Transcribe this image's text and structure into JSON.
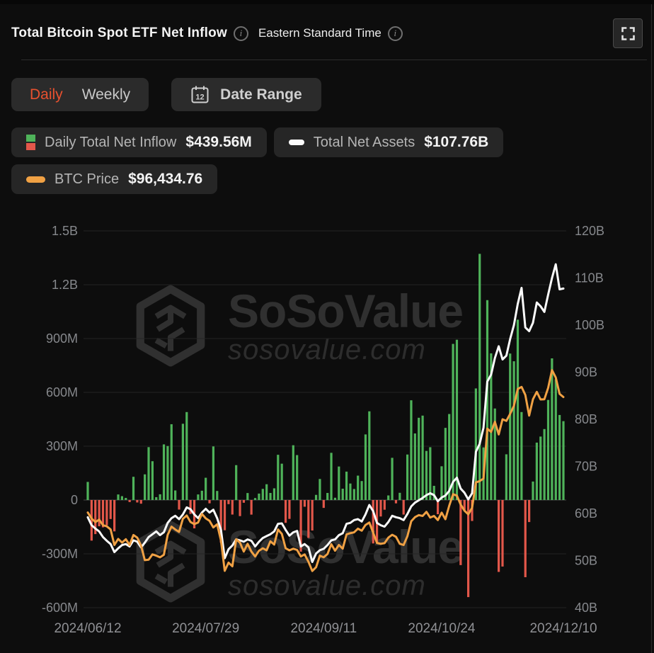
{
  "header": {
    "title": "Total Bitcoin Spot ETF Net Inflow",
    "timezone": "Eastern Standard Time",
    "info_icon_glyph": "i"
  },
  "controls": {
    "frequency_tabs": [
      {
        "label": "Daily",
        "active": true
      },
      {
        "label": "Weekly",
        "active": false
      }
    ],
    "date_range_label": "Date Range",
    "calendar_icon_day": "12"
  },
  "legend": [
    {
      "name": "Daily Total Net Inflow",
      "value": "$439.56M",
      "swatch": "green-red-bars"
    },
    {
      "name": "Total Net Assets",
      "value": "$107.76B",
      "swatch": "white-dash"
    },
    {
      "name": "BTC Price",
      "value": "$96,434.76",
      "swatch": "orange-dash"
    }
  ],
  "watermark": {
    "brand": "SoSoValue",
    "domain": "sosovalue.com"
  },
  "colors": {
    "background": "#0d0d0d",
    "pill": "#2b2b2b",
    "accent_active_tab": "#e8512f",
    "bar_positive": "#4fb35a",
    "bar_negative": "#e2574a",
    "net_assets_line": "#fbfbfb",
    "btc_price_line": "#f0a144",
    "grid": "#232323",
    "zero_line": "#474747",
    "axis_text": "#86888c",
    "x_axis_text": "#8f9094"
  },
  "chart_data": {
    "type": "combo-bar-line",
    "x_dates": [
      "2024/06/12",
      "2024/06/13",
      "2024/06/14",
      "2024/06/17",
      "2024/06/18",
      "2024/06/20",
      "2024/06/21",
      "2024/06/24",
      "2024/06/25",
      "2024/06/26",
      "2024/06/27",
      "2024/06/28",
      "2024/07/01",
      "2024/07/02",
      "2024/07/03",
      "2024/07/05",
      "2024/07/08",
      "2024/07/09",
      "2024/07/10",
      "2024/07/11",
      "2024/07/12",
      "2024/07/15",
      "2024/07/16",
      "2024/07/17",
      "2024/07/18",
      "2024/07/19",
      "2024/07/22",
      "2024/07/23",
      "2024/07/24",
      "2024/07/25",
      "2024/07/26",
      "2024/07/29",
      "2024/07/30",
      "2024/07/31",
      "2024/08/01",
      "2024/08/02",
      "2024/08/05",
      "2024/08/06",
      "2024/08/07",
      "2024/08/08",
      "2024/08/09",
      "2024/08/12",
      "2024/08/13",
      "2024/08/14",
      "2024/08/15",
      "2024/08/16",
      "2024/08/19",
      "2024/08/20",
      "2024/08/21",
      "2024/08/22",
      "2024/08/23",
      "2024/08/26",
      "2024/08/27",
      "2024/08/28",
      "2024/08/29",
      "2024/08/30",
      "2024/09/03",
      "2024/09/04",
      "2024/09/05",
      "2024/09/06",
      "2024/09/09",
      "2024/09/10",
      "2024/09/11",
      "2024/09/12",
      "2024/09/13",
      "2024/09/16",
      "2024/09/17",
      "2024/09/18",
      "2024/09/19",
      "2024/09/20",
      "2024/09/23",
      "2024/09/24",
      "2024/09/25",
      "2024/09/26",
      "2024/09/27",
      "2024/09/30",
      "2024/10/01",
      "2024/10/02",
      "2024/10/03",
      "2024/10/04",
      "2024/10/07",
      "2024/10/08",
      "2024/10/09",
      "2024/10/10",
      "2024/10/11",
      "2024/10/14",
      "2024/10/15",
      "2024/10/16",
      "2024/10/17",
      "2024/10/18",
      "2024/10/21",
      "2024/10/22",
      "2024/10/23",
      "2024/10/24",
      "2024/10/25",
      "2024/10/28",
      "2024/10/29",
      "2024/10/30",
      "2024/10/31",
      "2024/11/01",
      "2024/11/04",
      "2024/11/05",
      "2024/11/06",
      "2024/11/07",
      "2024/11/08",
      "2024/11/11",
      "2024/11/12",
      "2024/11/13",
      "2024/11/14",
      "2024/11/15",
      "2024/11/18",
      "2024/11/19",
      "2024/11/20",
      "2024/11/21",
      "2024/11/22",
      "2024/11/25",
      "2024/11/26",
      "2024/11/27",
      "2024/11/29",
      "2024/12/02",
      "2024/12/03",
      "2024/12/04",
      "2024/12/05",
      "2024/12/06",
      "2024/12/09",
      "2024/12/10"
    ],
    "series": [
      {
        "name": "Daily Total Net Inflow",
        "type": "bar",
        "axis": "left",
        "unit": "M USD",
        "values": [
          100.9,
          -226.2,
          -189.9,
          -146.3,
          -152.4,
          -140.3,
          -105.9,
          -174.8,
          31.0,
          21.5,
          11.8,
          -11.4,
          129.5,
          -13.7,
          -20.5,
          143.1,
          294.8,
          216.3,
          15.9,
          32.0,
          310.1,
          301.0,
          422.5,
          53.4,
          -53.3,
          425.0,
          490.2,
          -77.8,
          -157.8,
          31.1,
          51.8,
          124.1,
          -18.3,
          298.7,
          50.6,
          -237.5,
          -168.4,
          -23.0,
          -81.0,
          194.4,
          -89.7,
          -15.2,
          39.0,
          -81.4,
          11.1,
          35.9,
          62.1,
          88.0,
          39.4,
          65.2,
          252.1,
          202.6,
          -127.1,
          -105.2,
          305.3,
          250.4,
          -287.8,
          -37.3,
          -211.1,
          -169.9,
          28.7,
          117.4,
          -43.9,
          39.4,
          263.1,
          12.7,
          186.8,
          63.1,
          158.3,
          92.0,
          61.3,
          136.0,
          105.8,
          365.6,
          494.4,
          -242.0,
          -242.6,
          -91.8,
          -54.1,
          25.6,
          235.2,
          -18.6,
          40.3,
          -81.1,
          253.6,
          555.9,
          371.0,
          458.5,
          470.5,
          273.7,
          294.3,
          79.1,
          -79.1,
          188.1,
          402.1,
          479.4,
          870.1,
          893.3,
          -362.7,
          -54.9,
          -541.1,
          -116.8,
          621.9,
          1372.0,
          293.4,
          1114.1,
          817.5,
          510.1,
          -400.7,
          -370.8,
          254.8,
          816.4,
          773.4,
          1005.1,
          490.3,
          -430.2,
          -122.8,
          103.1,
          320.0,
          353.7,
          395.5,
          557.8,
          789.5,
          672.9,
          474.0,
          439.56
        ]
      },
      {
        "name": "Total Net Assets",
        "type": "line",
        "axis": "right",
        "unit": "B USD",
        "values": [
          59.2,
          57.5,
          56.8,
          56.2,
          55.0,
          54.2,
          53.5,
          51.8,
          52.6,
          53.3,
          53.5,
          53.0,
          54.3,
          54.0,
          52.8,
          53.8,
          55.0,
          55.6,
          56.2,
          55.4,
          56.0,
          58.0,
          59.0,
          59.5,
          58.8,
          59.8,
          61.3,
          60.9,
          59.8,
          59.0,
          60.2,
          61.0,
          60.2,
          60.8,
          59.0,
          56.5,
          50.5,
          52.4,
          53.2,
          54.5,
          54.3,
          54.0,
          54.5,
          54.2,
          53.0,
          54.0,
          54.8,
          55.2,
          55.6,
          56.2,
          57.8,
          57.9,
          56.5,
          55.3,
          56.0,
          56.3,
          53.0,
          53.5,
          52.8,
          49.7,
          51.5,
          52.2,
          52.5,
          53.3,
          54.3,
          54.5,
          55.4,
          55.8,
          57.8,
          58.0,
          58.6,
          58.8,
          58.3,
          59.8,
          61.8,
          60.5,
          58.0,
          57.5,
          57.2,
          58.2,
          59.5,
          59.2,
          59.0,
          58.6,
          59.9,
          61.5,
          62.3,
          62.8,
          63.3,
          63.9,
          64.3,
          63.9,
          62.6,
          63.4,
          63.8,
          64.8,
          66.7,
          67.6,
          65.3,
          64.4,
          63.0,
          64.3,
          73.1,
          74.8,
          78.2,
          88.0,
          89.5,
          93.0,
          95.5,
          92.7,
          93.5,
          97.0,
          100.0,
          104.5,
          107.9,
          99.5,
          98.7,
          100.5,
          104.8,
          104.0,
          102.8,
          106.5,
          110.0,
          112.9,
          107.6,
          107.76
        ]
      },
      {
        "name": "BTC Price",
        "type": "line",
        "axis": "price",
        "unit": "USD",
        "values": [
          68250,
          66750,
          65900,
          66500,
          65150,
          64850,
          64100,
          60300,
          61800,
          60900,
          61700,
          60300,
          62750,
          62100,
          60150,
          56600,
          56700,
          58000,
          57700,
          57300,
          57900,
          62800,
          64800,
          64100,
          63500,
          66700,
          67500,
          65900,
          65400,
          65800,
          67900,
          66800,
          66200,
          64600,
          65350,
          61400,
          54000,
          56000,
          55100,
          61700,
          60900,
          58700,
          60600,
          58700,
          57500,
          58900,
          59500,
          59000,
          61200,
          60400,
          64100,
          63000,
          59500,
          59000,
          59400,
          59100,
          57500,
          58000,
          56200,
          53950,
          54900,
          57700,
          57300,
          58100,
          60500,
          58900,
          60300,
          59400,
          62900,
          63200,
          63400,
          64300,
          63800,
          65200,
          65800,
          63300,
          60800,
          60600,
          60750,
          62100,
          62800,
          62300,
          60600,
          60300,
          62450,
          66100,
          67100,
          67600,
          67400,
          68400,
          67000,
          67400,
          66400,
          68200,
          66600,
          69900,
          72700,
          72350,
          70200,
          68700,
          67800,
          69400,
          75600,
          75900,
          76500,
          88700,
          87900,
          90400,
          87300,
          91000,
          90600,
          92300,
          94300,
          98400,
          98900,
          96950,
          91900,
          95900,
          97700,
          95850,
          95900,
          98700,
          103000,
          101200,
          97200,
          96434.76
        ]
      }
    ],
    "left_axis": {
      "ticks": [
        "1.5B",
        "1.2B",
        "900M",
        "600M",
        "300M",
        "0",
        "-300M",
        "-600M"
      ],
      "range_musd": [
        -600,
        1500
      ]
    },
    "right_axis": {
      "ticks": [
        "120B",
        "110B",
        "100B",
        "90B",
        "80B",
        "70B",
        "60B",
        "50B",
        "40B"
      ],
      "range_busd": [
        40,
        120
      ]
    },
    "price_axis": {
      "range_usd": [
        45000,
        137000
      ],
      "visible": false
    },
    "x_axis": {
      "tick_labels": [
        "2024/06/12",
        "2024/07/29",
        "2024/09/11",
        "2024/10/24",
        "2024/12/10"
      ]
    },
    "grid": "horizontal"
  }
}
